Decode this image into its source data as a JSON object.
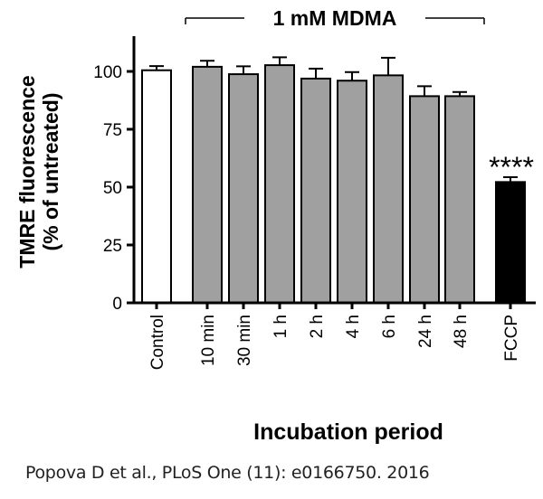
{
  "chart_data": {
    "type": "bar",
    "categories": [
      "Control",
      "10 min",
      "30 min",
      "1 h",
      "2 h",
      "4 h",
      "6 h",
      "24 h",
      "48 h",
      "FCCP"
    ],
    "values": [
      100.5,
      102.0,
      98.8,
      102.7,
      96.9,
      96.0,
      98.3,
      89.3,
      89.3,
      52.2
    ],
    "error_upper": [
      1.8,
      2.6,
      3.4,
      3.4,
      4.3,
      3.7,
      7.6,
      4.3,
      1.8,
      2.1
    ],
    "bar_colors": [
      "#ffffff",
      "#a0a0a0",
      "#a0a0a0",
      "#a0a0a0",
      "#a0a0a0",
      "#a0a0a0",
      "#a0a0a0",
      "#a0a0a0",
      "#a0a0a0",
      "#000000"
    ],
    "ylabel_line1": "TMRE fluorescence",
    "ylabel_line2": "(% of untreated)",
    "xlabel": "Incubation period",
    "ylim": [
      0,
      110
    ],
    "yticks": [
      "0",
      "25",
      "50",
      "75",
      "100"
    ],
    "group_label": "1 mM MDMA",
    "significance": "****",
    "grid": false
  },
  "credit": "Popova D et al., PLoS One (11): e0166750. 2016"
}
